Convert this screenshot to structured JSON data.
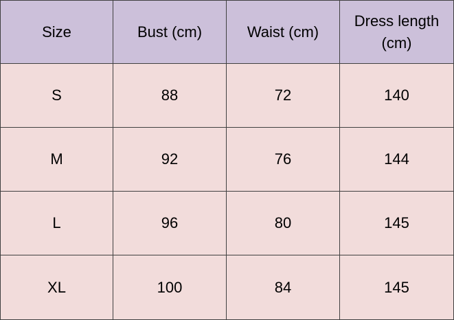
{
  "table": {
    "header": [
      "Size",
      "Bust (cm)",
      "Waist (cm)",
      "Dress length (cm)"
    ],
    "rows": [
      [
        "S",
        88,
        72,
        140
      ],
      [
        "M",
        92,
        76,
        144
      ],
      [
        "L",
        96,
        80,
        145
      ],
      [
        "XL",
        100,
        84,
        145
      ]
    ]
  }
}
